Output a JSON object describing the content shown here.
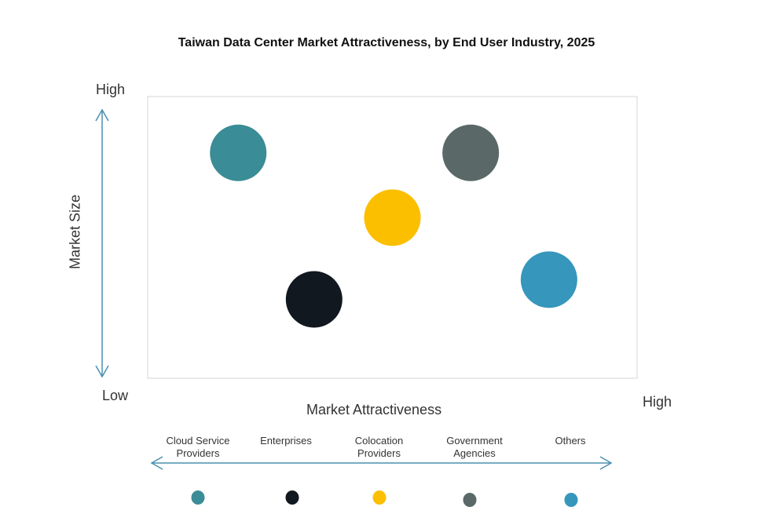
{
  "chart_data": {
    "type": "scatter",
    "title": "Taiwan Data Center Market Attractiveness,  by End User Industry, 2025",
    "xlabel": "Market Attractiveness",
    "ylabel": "Market Size",
    "x_low_label": "Low",
    "x_high_label": "High",
    "y_low_label": "Low",
    "y_high_label": "High",
    "xlim": [
      0,
      100
    ],
    "ylim": [
      0,
      100
    ],
    "grid": false,
    "legend_position": "bottom",
    "series": [
      {
        "name": "Cloud Service Providers",
        "x": 18.5,
        "y": 80,
        "color": "#3a8c96"
      },
      {
        "name": "Enterprises",
        "x": 34,
        "y": 28,
        "color": "#111820"
      },
      {
        "name": "Colocation Providers",
        "x": 50,
        "y": 57,
        "color": "#fbbf00"
      },
      {
        "name": "Government Agencies",
        "x": 66,
        "y": 80,
        "color": "#5a6868"
      },
      {
        "name": "Others",
        "x": 82,
        "y": 35,
        "color": "#3696bc"
      }
    ],
    "arrow_color": "#4a90b0"
  }
}
